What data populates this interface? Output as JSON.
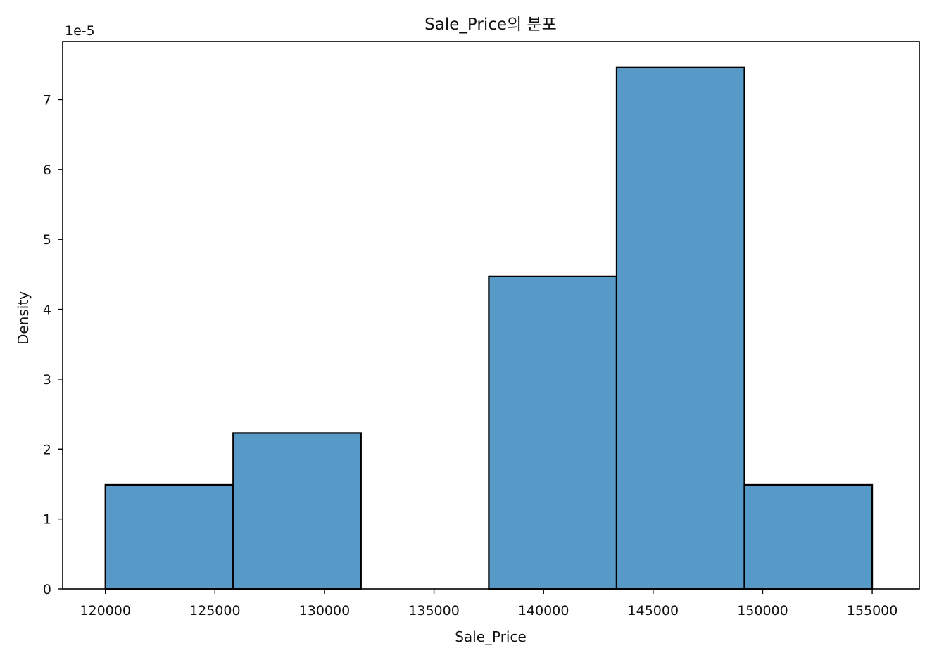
{
  "chart_data": {
    "type": "bar",
    "title": "Sale_Price의 분포",
    "xlabel": "Sale_Price",
    "ylabel": "Density",
    "y_offset_label": "1e-5",
    "bins": [
      {
        "start": 120000,
        "end": 125833.33,
        "value": 1.49
      },
      {
        "start": 125833.33,
        "end": 131666.67,
        "value": 2.23
      },
      {
        "start": 131666.67,
        "end": 137500,
        "value": 0
      },
      {
        "start": 137500,
        "end": 143333.33,
        "value": 4.47
      },
      {
        "start": 143333.33,
        "end": 149166.67,
        "value": 7.46
      },
      {
        "start": 149166.67,
        "end": 155000,
        "value": 1.49
      }
    ],
    "xlim": [
      118050,
      157150
    ],
    "ylim": [
      0,
      7.83
    ],
    "xticks": [
      120000,
      125000,
      130000,
      135000,
      140000,
      145000,
      150000,
      155000
    ],
    "yticks": [
      0,
      1,
      2,
      3,
      4,
      5,
      6,
      7
    ],
    "bar_color": "#5799c7",
    "edge_color": "#000000",
    "grid": false,
    "legend": "none"
  }
}
